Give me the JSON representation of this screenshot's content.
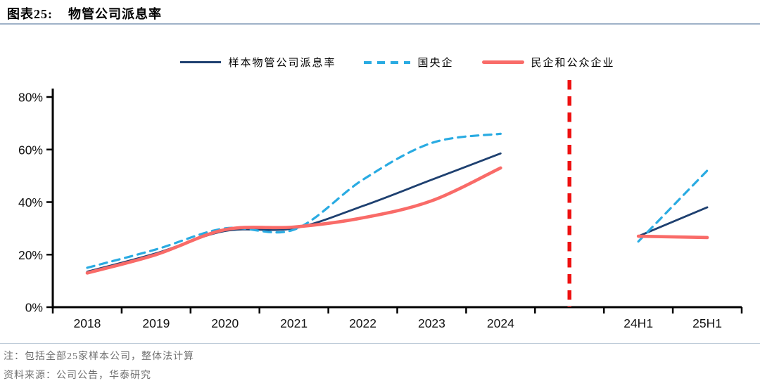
{
  "figure": {
    "label": "图表25:",
    "title": "物管公司派息率"
  },
  "chart_data": {
    "type": "line",
    "title": "物管公司派息率",
    "categories": [
      "2018",
      "2019",
      "2020",
      "2021",
      "2022",
      "2023",
      "2024",
      "",
      "24H1",
      "25H1"
    ],
    "ylim": [
      0,
      80
    ],
    "yticks": {
      "values": [
        0,
        20,
        40,
        60,
        80
      ],
      "labels": [
        "0%",
        "20%",
        "40%",
        "60%",
        "80%"
      ]
    },
    "legend_position": "top",
    "grid": false,
    "series": [
      {
        "name": "样本物管公司派息率",
        "color": "#1E4070",
        "style": "solid",
        "width": 2.8,
        "values": [
          13.5,
          20.5,
          29,
          30,
          38.5,
          48.5,
          58.5,
          null,
          27,
          38
        ]
      },
      {
        "name": "国央企",
        "color": "#29ABE2",
        "style": "dashed",
        "width": 3.2,
        "values": [
          15,
          22,
          30,
          29.5,
          48.5,
          62.5,
          66,
          null,
          25,
          52
        ]
      },
      {
        "name": "民企和公众企业",
        "color": "#F96B68",
        "style": "solid",
        "width": 4.6,
        "values": [
          13,
          20,
          29.5,
          30.5,
          34,
          40.5,
          53,
          null,
          27,
          26.5
        ]
      }
    ],
    "divider": {
      "position_between": [
        "2024",
        "24H1"
      ],
      "color": "#EE1111",
      "style": "dashed-vertical"
    },
    "axis_color": "#000000"
  },
  "notes": {
    "note": "注：包括全部25家样本公司，整体法计算",
    "source": "资料来源：公司公告，华泰研究"
  }
}
